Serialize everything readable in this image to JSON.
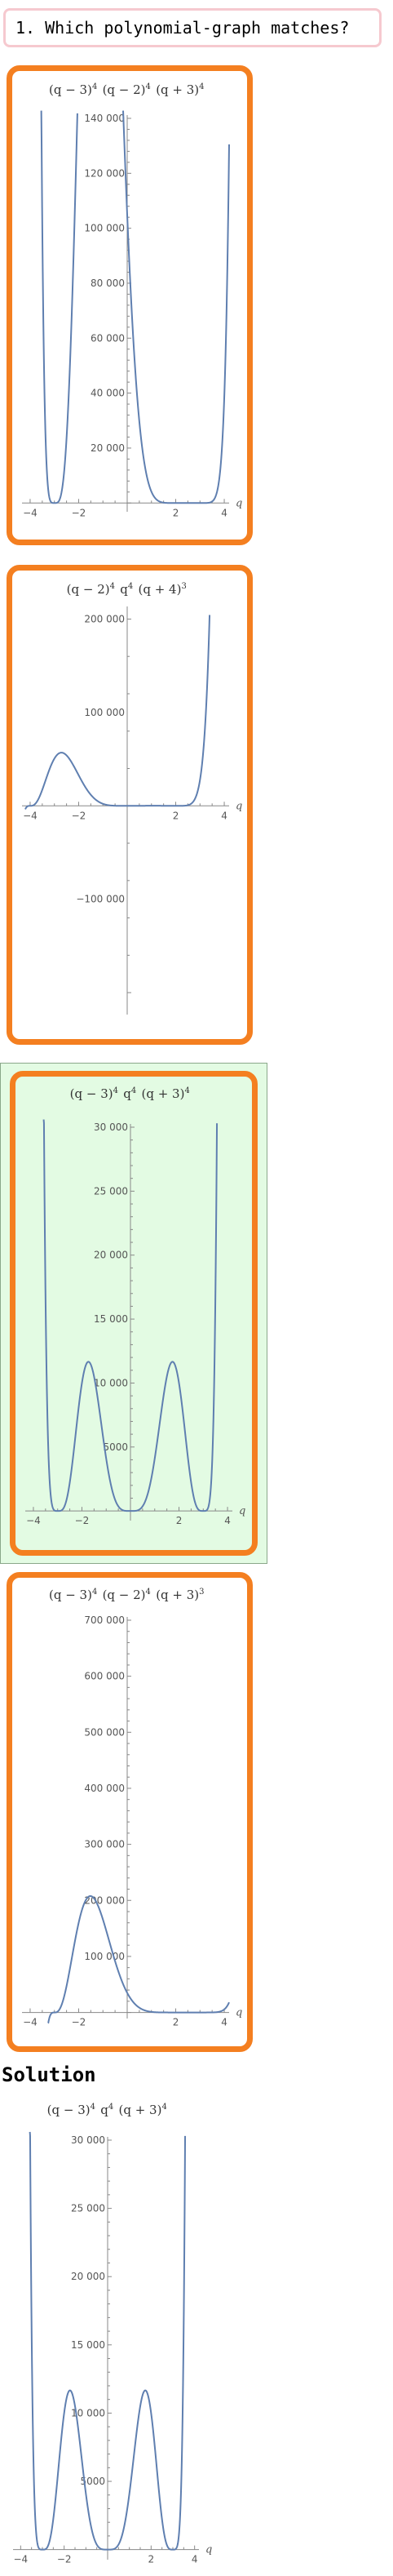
{
  "question": {
    "text": "1. Which polynomial-graph matches?"
  },
  "colors": {
    "card_border": "#f47f20",
    "correct_bg": "#e3fbe3",
    "curve": "#5f7fb0",
    "question_border": "#f6c9cf"
  },
  "options": [
    {
      "id": "option-1",
      "title": [
        [
          "(q − 3)",
          "4"
        ],
        [
          " (q − 2)",
          "4"
        ],
        [
          " (q + 3)",
          "4"
        ]
      ],
      "chart_data": {
        "type": "line",
        "function": {
          "roots": [
            [
              3,
              4
            ],
            [
              2,
              4
            ],
            [
              -3,
              4
            ]
          ]
        },
        "xlabel": "q",
        "xlim": [
          -4.2,
          4.2
        ],
        "ylim": [
          -2000,
          140000
        ],
        "x_ticks": [
          -4,
          -2,
          2,
          4
        ],
        "y_ticks": [
          20000,
          40000,
          60000,
          80000,
          100000,
          120000,
          140000
        ],
        "y_tick_labels": [
          "20 000",
          "40 000",
          "60 000",
          "80 000",
          "100 000",
          "120 000",
          "140 000"
        ]
      }
    },
    {
      "id": "option-2",
      "title": [
        [
          "(q − 2)",
          "4"
        ],
        [
          " q",
          "4"
        ],
        [
          " (q + 4)",
          "3"
        ]
      ],
      "chart_data": {
        "type": "line",
        "function": {
          "roots": [
            [
              2,
              4
            ],
            [
              0,
              4
            ],
            [
              -4,
              3
            ]
          ]
        },
        "xlabel": "q",
        "xlim": [
          -4.2,
          4.2
        ],
        "ylim": [
          -220000,
          210000
        ],
        "x_ticks": [
          -4,
          -2,
          2,
          4
        ],
        "y_ticks": [
          -100000,
          100000,
          200000
        ],
        "y_tick_labels": [
          "−100 000",
          "100 000",
          "200 000"
        ]
      }
    },
    {
      "id": "option-3",
      "correct": true,
      "title": [
        [
          "(q − 3)",
          "4"
        ],
        [
          " q",
          "4"
        ],
        [
          " (q + 3)",
          "4"
        ]
      ],
      "chart_data": {
        "type": "line",
        "function": {
          "roots": [
            [
              3,
              4
            ],
            [
              0,
              4
            ],
            [
              -3,
              4
            ]
          ]
        },
        "xlabel": "q",
        "xlim": [
          -4.2,
          4.2
        ],
        "ylim": [
          -500,
          30000
        ],
        "x_ticks": [
          -4,
          -2,
          2,
          4
        ],
        "y_ticks": [
          5000,
          10000,
          15000,
          20000,
          25000,
          30000
        ],
        "y_tick_labels": [
          "5000",
          "10 000",
          "15 000",
          "20 000",
          "25 000",
          "30 000"
        ]
      }
    },
    {
      "id": "option-4",
      "title": [
        [
          "(q − 3)",
          "4"
        ],
        [
          " (q − 2)",
          "4"
        ],
        [
          " (q + 3)",
          "3"
        ]
      ],
      "chart_data": {
        "type": "line",
        "function": {
          "roots": [
            [
              3,
              4
            ],
            [
              2,
              4
            ],
            [
              -3,
              3
            ]
          ]
        },
        "xlabel": "q",
        "xlim": [
          -4.2,
          4.2
        ],
        "ylim": [
          -5000,
          700000
        ],
        "x_ticks": [
          -4,
          -2,
          2,
          4
        ],
        "y_ticks": [
          100000,
          200000,
          300000,
          400000,
          500000,
          600000,
          700000
        ],
        "y_tick_labels": [
          "100 000",
          "200 000",
          "300 000",
          "400 000",
          "500 000",
          "600 000",
          "700 000"
        ]
      }
    }
  ],
  "solution": {
    "heading": "Solution",
    "title": [
      [
        "(q − 3)",
        "4"
      ],
      [
        " q",
        "4"
      ],
      [
        " (q + 3)",
        "4"
      ]
    ],
    "chart_data": {
      "type": "line",
      "function": {
        "roots": [
          [
            3,
            4
          ],
          [
            0,
            4
          ],
          [
            -3,
            4
          ]
        ]
      },
      "xlabel": "q",
      "xlim": [
        -4.2,
        4.2
      ],
      "ylim": [
        -500,
        30000
      ],
      "x_ticks": [
        -4,
        -2,
        2,
        4
      ],
      "y_ticks": [
        5000,
        10000,
        15000,
        20000,
        25000,
        30000
      ],
      "y_tick_labels": [
        "5000",
        "10 000",
        "15 000",
        "20 000",
        "25 000",
        "30 000"
      ]
    }
  }
}
